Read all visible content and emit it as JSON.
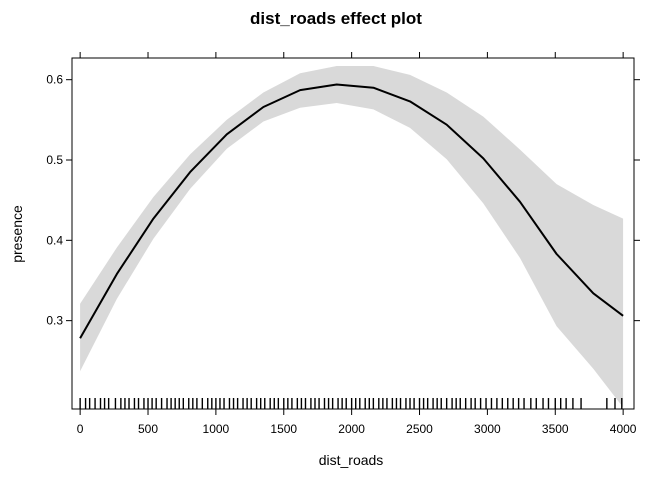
{
  "chart_data": {
    "type": "line",
    "title": "dist_roads effect plot",
    "xlabel": "dist_roads",
    "ylabel": "presence",
    "xlim": [
      -60,
      4080
    ],
    "ylim": [
      0.19,
      0.627
    ],
    "x_ticks": [
      0,
      500,
      1000,
      1500,
      2000,
      2500,
      3000,
      3500,
      4000
    ],
    "x_tick_labels": [
      "0",
      "500",
      "1000",
      "1500",
      "2000",
      "2500",
      "3000",
      "3500",
      "4000"
    ],
    "y_ticks": [
      0.3,
      0.4,
      0.5,
      0.6
    ],
    "y_tick_labels": [
      "0.3",
      "0.4",
      "0.5",
      "0.6"
    ],
    "grid": false,
    "series": [
      {
        "x": [
          0,
          270,
          540,
          810,
          1080,
          1350,
          1620,
          1890,
          2160,
          2430,
          2700,
          2970,
          3240,
          3510,
          3780,
          4000
        ],
        "values": [
          0.278,
          0.358,
          0.427,
          0.485,
          0.532,
          0.566,
          0.587,
          0.594,
          0.59,
          0.573,
          0.544,
          0.502,
          0.448,
          0.383,
          0.334,
          0.306
        ],
        "lower": [
          0.237,
          0.327,
          0.402,
          0.464,
          0.514,
          0.548,
          0.565,
          0.571,
          0.563,
          0.54,
          0.501,
          0.446,
          0.378,
          0.293,
          0.24,
          0.192
        ],
        "upper": [
          0.321,
          0.391,
          0.454,
          0.507,
          0.55,
          0.584,
          0.608,
          0.617,
          0.617,
          0.606,
          0.584,
          0.554,
          0.513,
          0.47,
          0.444,
          0.427
        ]
      }
    ],
    "band_color": "#d9d9d9",
    "line_color": "#000000",
    "rug": [
      0,
      40,
      70,
      110,
      150,
      180,
      210,
      260,
      300,
      330,
      360,
      400,
      430,
      470,
      500,
      530,
      560,
      600,
      640,
      670,
      700,
      730,
      760,
      800,
      830,
      860,
      900,
      940,
      970,
      1000,
      1030,
      1060,
      1100,
      1130,
      1160,
      1200,
      1230,
      1260,
      1300,
      1330,
      1360,
      1400,
      1430,
      1460,
      1500,
      1530,
      1560,
      1600,
      1630,
      1660,
      1700,
      1730,
      1760,
      1800,
      1830,
      1860,
      1900,
      1930,
      1960,
      2000,
      2030,
      2060,
      2100,
      2130,
      2160,
      2200,
      2230,
      2260,
      2300,
      2330,
      2360,
      2400,
      2430,
      2460,
      2500,
      2530,
      2560,
      2600,
      2630,
      2660,
      2700,
      2740,
      2770,
      2800,
      2840,
      2880,
      2910,
      2950,
      2990,
      3030,
      3070,
      3110,
      3150,
      3190,
      3230,
      3270,
      3320,
      3360,
      3410,
      3450,
      3500,
      3540,
      3580,
      3630,
      3690,
      3880,
      3940,
      3990
    ]
  }
}
